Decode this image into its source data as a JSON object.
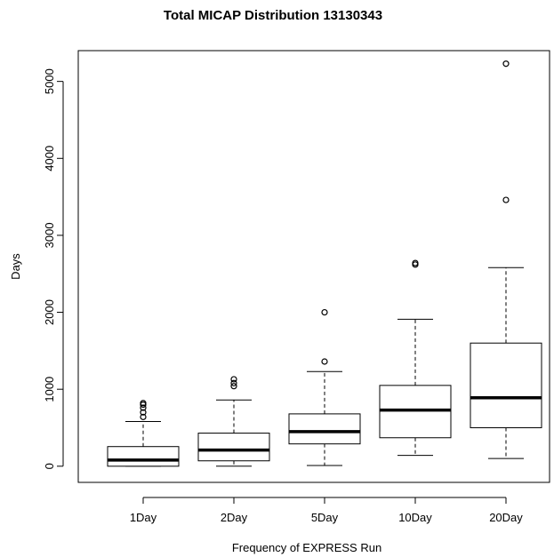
{
  "chart_data": {
    "type": "box",
    "title": "Total MICAP Distribution 13130343",
    "xlabel": "Frequency of EXPRESS Run",
    "ylabel": "Days",
    "yticks": [
      0,
      1000,
      2000,
      3000,
      4000,
      5000
    ],
    "ylim": [
      -210,
      5400
    ],
    "grid": false,
    "categories": [
      "1Day",
      "2Day",
      "5Day",
      "10Day",
      "20Day"
    ],
    "boxes": [
      {
        "category": "1Day",
        "whisker_low": 0,
        "q1": 0,
        "median": 80,
        "q3": 255,
        "whisker_high": 580,
        "outliers": [
          640,
          700,
          760,
          800,
          820
        ]
      },
      {
        "category": "2Day",
        "whisker_low": 0,
        "q1": 70,
        "median": 210,
        "q3": 430,
        "whisker_high": 860,
        "outliers": [
          1040,
          1080,
          1130
        ]
      },
      {
        "category": "5Day",
        "whisker_low": 10,
        "q1": 290,
        "median": 450,
        "q3": 680,
        "whisker_high": 1230,
        "outliers": [
          1360,
          2000
        ]
      },
      {
        "category": "10Day",
        "whisker_low": 140,
        "q1": 370,
        "median": 730,
        "q3": 1050,
        "whisker_high": 1910,
        "outliers": [
          2620,
          2640
        ]
      },
      {
        "category": "20Day",
        "whisker_low": 100,
        "q1": 500,
        "median": 890,
        "q3": 1600,
        "whisker_high": 2580,
        "outliers": [
          3460,
          5230
        ]
      }
    ]
  }
}
